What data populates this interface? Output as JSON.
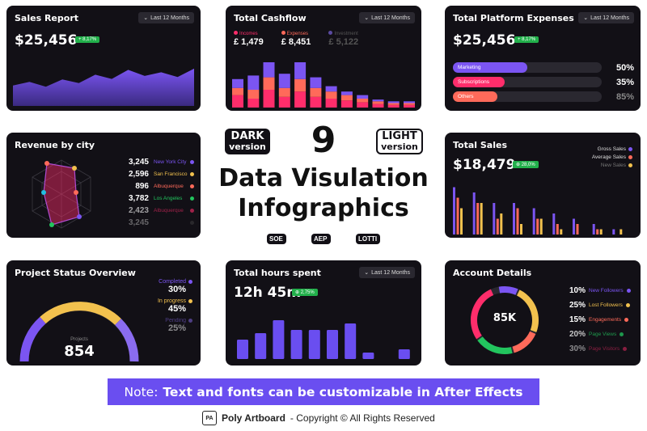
{
  "common": {
    "last_12_months": "Last 12 Months"
  },
  "sales_report": {
    "title": "Sales Report",
    "value": "$25,456",
    "badge": "+ 8,17%",
    "chart_data": {
      "type": "area",
      "values": [
        34,
        40,
        32,
        44,
        38,
        52,
        45,
        60,
        50,
        56,
        48,
        62
      ]
    }
  },
  "total_cashflow": {
    "title": "Total Cashflow",
    "legend": [
      {
        "label": "Incomes",
        "value": "£ 1,479",
        "color": "#ff2d6b"
      },
      {
        "label": "Expenses",
        "value": "£ 8,451",
        "color": "#ff6a5a"
      },
      {
        "label": "Investment",
        "value": "£ 5,122",
        "color": "#7b55f2"
      }
    ],
    "chart_data": {
      "type": "bar",
      "series": [
        {
          "values": [
            14,
            10,
            20,
            12,
            18,
            12,
            10,
            8,
            6,
            4,
            3,
            3
          ]
        },
        {
          "values": [
            8,
            10,
            14,
            10,
            14,
            10,
            8,
            6,
            4,
            3,
            2,
            2
          ]
        },
        {
          "values": [
            10,
            16,
            20,
            16,
            22,
            12,
            6,
            4,
            4,
            2,
            2,
            2
          ]
        }
      ]
    }
  },
  "platform_expenses": {
    "title": "Total Platform Expenses",
    "value": "$25,456",
    "badge": "+ 8,17%",
    "bars": [
      {
        "label": "Marketing",
        "pct": "50%",
        "fill": 0.5,
        "color": "#7b55f2"
      },
      {
        "label": "Subscriptions",
        "pct": "35%",
        "fill": 0.35,
        "color": "#ff2d6b"
      },
      {
        "label": "Others",
        "pct": "85%",
        "fill": 0.85,
        "color": "#ff6a5a"
      }
    ]
  },
  "revenue_by_city": {
    "title": "Revenue by city",
    "rows": [
      {
        "value": "3,245",
        "city": "New York City",
        "color": "#7b55f2"
      },
      {
        "value": "2,596",
        "city": "San Francisco",
        "color": "#f2c14e"
      },
      {
        "value": "896",
        "city": "Albuquerque",
        "color": "#ff6a5a"
      },
      {
        "value": "3,782",
        "city": "Los Angeles",
        "color": "#22c55e"
      },
      {
        "value": "2,423",
        "city": "Albuquerque",
        "color": "#ff2d6b"
      },
      {
        "value": "3,245",
        "city": "",
        "color": "#555555"
      }
    ]
  },
  "middle": {
    "dark_badge": {
      "line1": "DARK",
      "line2": "version"
    },
    "number": "9",
    "light_badge": {
      "line1": "LIGHT",
      "line2": "version"
    },
    "headline1": "Data Visulation",
    "headline2": "Infographics",
    "formats": [
      "SOE",
      "AEP",
      "LOTTI"
    ]
  },
  "total_sales": {
    "title": "Total Sales",
    "value": "$18,479",
    "badge": "28,0%",
    "legend": [
      {
        "label": "Gross Sales",
        "color": "#7b55f2"
      },
      {
        "label": "Average Sales",
        "color": "#ff6a5a"
      },
      {
        "label": "New Sales",
        "color": "#f2c14e"
      }
    ],
    "chart_data": {
      "type": "bar",
      "series": [
        {
          "values": [
            9,
            8,
            6,
            6,
            5,
            4,
            3,
            2,
            1
          ]
        },
        {
          "values": [
            7,
            6,
            3,
            5,
            3,
            2,
            2,
            1,
            0
          ]
        },
        {
          "values": [
            5,
            6,
            4,
            2,
            3,
            1,
            0,
            1,
            1
          ]
        }
      ]
    }
  },
  "project_status": {
    "title": "Project Status Overview",
    "center_label": "Projects",
    "center_value": "854",
    "items": [
      {
        "label": "Completed",
        "pct": "30%",
        "color": "#7b55f2"
      },
      {
        "label": "In progress",
        "pct": "45%",
        "color": "#f2c14e"
      },
      {
        "label": "Pending",
        "pct": "25%",
        "color": "#8a6cf0"
      }
    ]
  },
  "hours_spent": {
    "title": "Total hours spent",
    "value": "12h 45m",
    "badge": "2,75%",
    "chart_data": {
      "type": "bar",
      "values": [
        6,
        8,
        12,
        9,
        9,
        9,
        11,
        2,
        0,
        3
      ]
    }
  },
  "account_details": {
    "title": "Account Details",
    "center_value": "85K",
    "items": [
      {
        "pct": "10%",
        "label": "New Followers",
        "color": "#7b55f2"
      },
      {
        "pct": "25%",
        "label": "Lost Followers",
        "color": "#f2c14e"
      },
      {
        "pct": "15%",
        "label": "Engagements",
        "color": "#ff6a5a"
      },
      {
        "pct": "20%",
        "label": "Page Views",
        "color": "#22c55e"
      },
      {
        "pct": "30%",
        "label": "Page Visitors",
        "color": "#ff2d6b"
      }
    ]
  },
  "note": {
    "prefix": "Note:",
    "text": "Text and fonts can be customizable in After Effects"
  },
  "footer": {
    "brand": "Poly Artboard",
    "copyright": "- Copyright © All Rights Reserved",
    "logo_text": "PA"
  }
}
